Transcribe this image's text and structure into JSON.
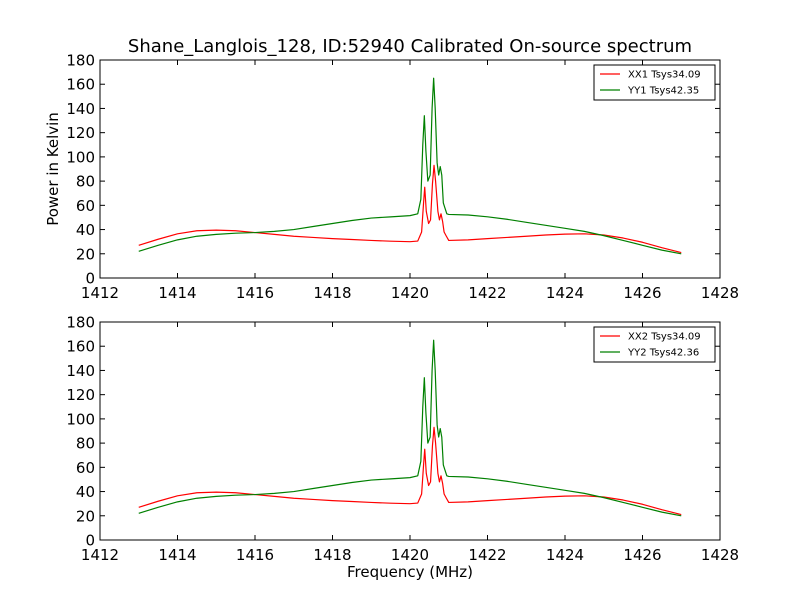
{
  "chart_data": [
    {
      "type": "line",
      "title": "Shane_Langlois_128, ID:52940 Calibrated On-source spectrum",
      "xlabel": "",
      "ylabel": "Power in Kelvin",
      "xlim": [
        1412,
        1428
      ],
      "ylim": [
        0,
        180
      ],
      "xticks": [
        1412,
        1414,
        1416,
        1418,
        1420,
        1422,
        1424,
        1426,
        1428
      ],
      "yticks": [
        0,
        20,
        40,
        60,
        80,
        100,
        120,
        140,
        160,
        180
      ],
      "grid": false,
      "legend_position": "top-right",
      "series": [
        {
          "name": "XX1 Tsys34.09",
          "color": "#ff0000",
          "points": [
            [
              1413.0,
              27
            ],
            [
              1413.5,
              32
            ],
            [
              1414.0,
              36.5
            ],
            [
              1414.5,
              39
            ],
            [
              1415.0,
              39.5
            ],
            [
              1415.5,
              39
            ],
            [
              1416.0,
              37.5
            ],
            [
              1416.5,
              36
            ],
            [
              1417.0,
              34.5
            ],
            [
              1417.5,
              33.5
            ],
            [
              1418.0,
              32.5
            ],
            [
              1418.5,
              31.8
            ],
            [
              1419.0,
              31
            ],
            [
              1419.5,
              30.4
            ],
            [
              1420.0,
              30
            ],
            [
              1420.2,
              30.5
            ],
            [
              1420.3,
              38
            ],
            [
              1420.35,
              62
            ],
            [
              1420.38,
              75
            ],
            [
              1420.42,
              55
            ],
            [
              1420.48,
              45
            ],
            [
              1420.53,
              48
            ],
            [
              1420.58,
              78
            ],
            [
              1420.62,
              93
            ],
            [
              1420.66,
              80
            ],
            [
              1420.72,
              55
            ],
            [
              1420.76,
              48
            ],
            [
              1420.8,
              53
            ],
            [
              1420.84,
              47
            ],
            [
              1420.88,
              38
            ],
            [
              1420.93,
              35
            ],
            [
              1421.0,
              31
            ],
            [
              1421.5,
              31.5
            ],
            [
              1422.0,
              32.5
            ],
            [
              1422.5,
              33.5
            ],
            [
              1423.0,
              34.5
            ],
            [
              1423.5,
              35.5
            ],
            [
              1424.0,
              36.2
            ],
            [
              1424.5,
              36.5
            ],
            [
              1425.0,
              35.5
            ],
            [
              1425.5,
              33
            ],
            [
              1426.0,
              29.5
            ],
            [
              1426.5,
              25
            ],
            [
              1427.0,
              21
            ]
          ]
        },
        {
          "name": "YY1 Tsys42.35",
          "color": "#008000",
          "points": [
            [
              1413.0,
              22
            ],
            [
              1413.5,
              27
            ],
            [
              1414.0,
              31.5
            ],
            [
              1414.5,
              34.5
            ],
            [
              1415.0,
              36
            ],
            [
              1415.5,
              37
            ],
            [
              1416.0,
              37.5
            ],
            [
              1416.5,
              38.5
            ],
            [
              1417.0,
              40
            ],
            [
              1417.5,
              42.5
            ],
            [
              1418.0,
              45
            ],
            [
              1418.5,
              47.5
            ],
            [
              1419.0,
              49.5
            ],
            [
              1419.5,
              50.5
            ],
            [
              1420.0,
              51.5
            ],
            [
              1420.2,
              53
            ],
            [
              1420.28,
              65
            ],
            [
              1420.33,
              110
            ],
            [
              1420.37,
              134
            ],
            [
              1420.41,
              105
            ],
            [
              1420.46,
              80
            ],
            [
              1420.52,
              85
            ],
            [
              1420.57,
              140
            ],
            [
              1420.61,
              165
            ],
            [
              1420.65,
              140
            ],
            [
              1420.7,
              95
            ],
            [
              1420.74,
              85
            ],
            [
              1420.78,
              92
            ],
            [
              1420.82,
              85
            ],
            [
              1420.86,
              62
            ],
            [
              1420.9,
              58
            ],
            [
              1420.95,
              53
            ],
            [
              1421.0,
              52.5
            ],
            [
              1421.5,
              52
            ],
            [
              1422.0,
              50.5
            ],
            [
              1422.5,
              48.5
            ],
            [
              1423.0,
              46
            ],
            [
              1423.5,
              43.5
            ],
            [
              1424.0,
              41
            ],
            [
              1424.5,
              38.5
            ],
            [
              1425.0,
              35
            ],
            [
              1425.5,
              31
            ],
            [
              1426.0,
              27
            ],
            [
              1426.5,
              23
            ],
            [
              1427.0,
              20
            ]
          ]
        }
      ]
    },
    {
      "type": "line",
      "title": "",
      "xlabel": "Frequency (MHz)",
      "ylabel": "",
      "xlim": [
        1412,
        1428
      ],
      "ylim": [
        0,
        180
      ],
      "xticks": [
        1412,
        1414,
        1416,
        1418,
        1420,
        1422,
        1424,
        1426,
        1428
      ],
      "yticks": [
        0,
        20,
        40,
        60,
        80,
        100,
        120,
        140,
        160,
        180
      ],
      "grid": false,
      "legend_position": "top-right",
      "series": [
        {
          "name": "XX2 Tsys34.09",
          "color": "#ff0000",
          "points": [
            [
              1413.0,
              27
            ],
            [
              1413.5,
              32
            ],
            [
              1414.0,
              36.5
            ],
            [
              1414.5,
              39
            ],
            [
              1415.0,
              39.5
            ],
            [
              1415.5,
              39
            ],
            [
              1416.0,
              37.5
            ],
            [
              1416.5,
              36
            ],
            [
              1417.0,
              34.5
            ],
            [
              1417.5,
              33.5
            ],
            [
              1418.0,
              32.5
            ],
            [
              1418.5,
              31.8
            ],
            [
              1419.0,
              31
            ],
            [
              1419.5,
              30.4
            ],
            [
              1420.0,
              30
            ],
            [
              1420.2,
              30.5
            ],
            [
              1420.3,
              38
            ],
            [
              1420.35,
              62
            ],
            [
              1420.38,
              75
            ],
            [
              1420.42,
              55
            ],
            [
              1420.48,
              45
            ],
            [
              1420.53,
              48
            ],
            [
              1420.58,
              78
            ],
            [
              1420.62,
              93
            ],
            [
              1420.66,
              80
            ],
            [
              1420.72,
              55
            ],
            [
              1420.76,
              48
            ],
            [
              1420.8,
              53
            ],
            [
              1420.84,
              47
            ],
            [
              1420.88,
              38
            ],
            [
              1420.93,
              35
            ],
            [
              1421.0,
              31
            ],
            [
              1421.5,
              31.5
            ],
            [
              1422.0,
              32.5
            ],
            [
              1422.5,
              33.5
            ],
            [
              1423.0,
              34.5
            ],
            [
              1423.5,
              35.5
            ],
            [
              1424.0,
              36.2
            ],
            [
              1424.5,
              36.5
            ],
            [
              1425.0,
              35.5
            ],
            [
              1425.5,
              33
            ],
            [
              1426.0,
              29.5
            ],
            [
              1426.5,
              25
            ],
            [
              1427.0,
              21
            ]
          ]
        },
        {
          "name": "YY2 Tsys42.36",
          "color": "#008000",
          "points": [
            [
              1413.0,
              22
            ],
            [
              1413.5,
              27
            ],
            [
              1414.0,
              31.5
            ],
            [
              1414.5,
              34.5
            ],
            [
              1415.0,
              36
            ],
            [
              1415.5,
              37
            ],
            [
              1416.0,
              37.5
            ],
            [
              1416.5,
              38.5
            ],
            [
              1417.0,
              40
            ],
            [
              1417.5,
              42.5
            ],
            [
              1418.0,
              45
            ],
            [
              1418.5,
              47.5
            ],
            [
              1419.0,
              49.5
            ],
            [
              1419.5,
              50.5
            ],
            [
              1420.0,
              51.5
            ],
            [
              1420.2,
              53
            ],
            [
              1420.28,
              65
            ],
            [
              1420.33,
              110
            ],
            [
              1420.37,
              134
            ],
            [
              1420.41,
              105
            ],
            [
              1420.46,
              80
            ],
            [
              1420.52,
              85
            ],
            [
              1420.57,
              140
            ],
            [
              1420.61,
              165
            ],
            [
              1420.65,
              140
            ],
            [
              1420.7,
              95
            ],
            [
              1420.74,
              85
            ],
            [
              1420.78,
              92
            ],
            [
              1420.82,
              85
            ],
            [
              1420.86,
              62
            ],
            [
              1420.9,
              58
            ],
            [
              1420.95,
              53
            ],
            [
              1421.0,
              52.5
            ],
            [
              1421.5,
              52
            ],
            [
              1422.0,
              50.5
            ],
            [
              1422.5,
              48.5
            ],
            [
              1423.0,
              46
            ],
            [
              1423.5,
              43.5
            ],
            [
              1424.0,
              41
            ],
            [
              1424.5,
              38.5
            ],
            [
              1425.0,
              35
            ],
            [
              1425.5,
              31
            ],
            [
              1426.0,
              27
            ],
            [
              1426.5,
              23
            ],
            [
              1427.0,
              20
            ]
          ]
        }
      ]
    }
  ]
}
